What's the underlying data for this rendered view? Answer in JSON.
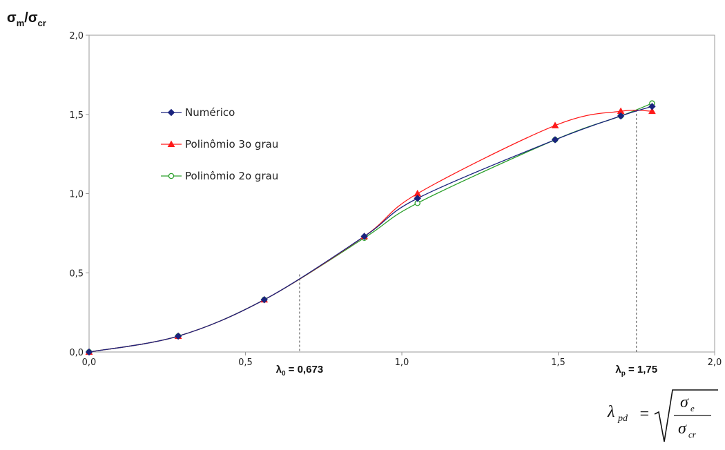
{
  "chart_data": {
    "type": "line",
    "ylabel": {
      "main_left": "σ",
      "sub_left": "m",
      "slash": "/",
      "main_right": "σ",
      "sub_right": "cr"
    },
    "xlim": [
      0,
      2
    ],
    "ylim": [
      0,
      2
    ],
    "x_ticks": [
      {
        "value": 0.0,
        "label": "0,0"
      },
      {
        "value": 0.5,
        "label": "0,5"
      },
      {
        "value": 1.0,
        "label": "1,0"
      },
      {
        "value": 1.5,
        "label": "1,5"
      },
      {
        "value": 2.0,
        "label": "2,0"
      }
    ],
    "y_ticks": [
      {
        "value": 0.0,
        "label": "0,0"
      },
      {
        "value": 0.5,
        "label": "0,5"
      },
      {
        "value": 1.0,
        "label": "1,0"
      },
      {
        "value": 1.5,
        "label": "1,5"
      },
      {
        "value": 2.0,
        "label": "2,0"
      }
    ],
    "grid": false,
    "legend_position": "top-left",
    "series": [
      {
        "name": "Numérico",
        "color": "#1a237e",
        "marker": "diamond",
        "points": [
          [
            0.0,
            0.0
          ],
          [
            0.285,
            0.1
          ],
          [
            0.56,
            0.33
          ],
          [
            0.88,
            0.73
          ],
          [
            1.05,
            0.97
          ],
          [
            1.49,
            1.34
          ],
          [
            1.7,
            1.49
          ],
          [
            1.8,
            1.55
          ]
        ]
      },
      {
        "name": "Polinômio 3o grau",
        "color": "#ff1a1a",
        "marker": "triangle",
        "points": [
          [
            0.0,
            0.0
          ],
          [
            0.285,
            0.1
          ],
          [
            0.56,
            0.33
          ],
          [
            0.88,
            0.73
          ],
          [
            1.05,
            1.0
          ],
          [
            1.49,
            1.43
          ],
          [
            1.7,
            1.52
          ],
          [
            1.8,
            1.52
          ]
        ]
      },
      {
        "name": "Polinômio 2o grau",
        "color": "#2ca02c",
        "marker": "circle-open",
        "points": [
          [
            0.0,
            0.0
          ],
          [
            0.285,
            0.1
          ],
          [
            0.56,
            0.33
          ],
          [
            0.88,
            0.72
          ],
          [
            1.05,
            0.94
          ],
          [
            1.49,
            1.34
          ],
          [
            1.7,
            1.49
          ],
          [
            1.8,
            1.57
          ]
        ]
      }
    ],
    "reference_lines": [
      {
        "x": 0.673,
        "y": 0.49,
        "label_main": "λ",
        "label_sub": "0",
        "label_value": " = 0,673"
      },
      {
        "x": 1.75,
        "y": 1.53,
        "label_main": "λ",
        "label_sub": "p",
        "label_value": " = 1,75"
      }
    ],
    "formula": {
      "lhs": "λ",
      "lhs_sub": "pd",
      "equals": "=",
      "num": "σ",
      "num_sub": "e",
      "den": "σ",
      "den_sub": "cr"
    }
  }
}
